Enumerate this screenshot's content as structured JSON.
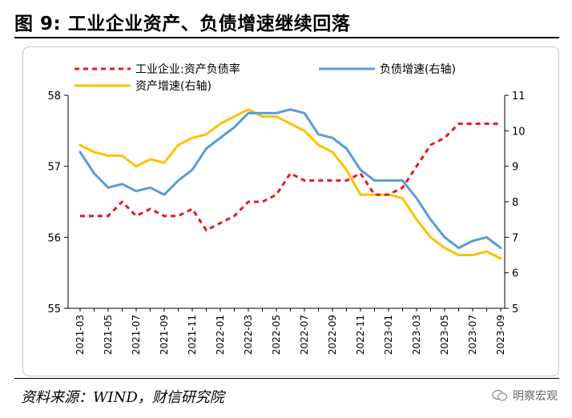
{
  "figure": {
    "title": "图 9:  工业企业资产、负债增速继续回落",
    "source": "资料来源：WIND，财信研究院",
    "watermark": "明察宏观"
  },
  "colors": {
    "series_ratio": "#e8191c",
    "series_liability": "#5b9bd5",
    "series_asset": "#ffc000"
  },
  "chart_data": {
    "type": "line",
    "title": "",
    "xlabel": "",
    "ylabel_left": "",
    "ylabel_right": "",
    "ylim_left": [
      55,
      58
    ],
    "ylim_right": [
      5,
      11
    ],
    "yticks_left": [
      "55",
      "56",
      "57",
      "58"
    ],
    "yticks_right": [
      "5",
      "6",
      "7",
      "8",
      "9",
      "10",
      "11"
    ],
    "xticks": [
      "2021-03",
      "2021-05",
      "2021-07",
      "2021-09",
      "2021-11",
      "2022-01",
      "2022-03",
      "2022-05",
      "2022-07",
      "2022-09",
      "2022-11",
      "2023-01",
      "2023-03",
      "2023-05",
      "2023-07",
      "2023-09"
    ],
    "grid": false,
    "legend_position": "top",
    "x": [
      "2021-03",
      "2021-04",
      "2021-05",
      "2021-06",
      "2021-07",
      "2021-08",
      "2021-09",
      "2021-10",
      "2021-11",
      "2021-12",
      "2022-01",
      "2022-02",
      "2022-03",
      "2022-04",
      "2022-05",
      "2022-06",
      "2022-07",
      "2022-08",
      "2022-09",
      "2022-10",
      "2022-11",
      "2022-12",
      "2023-01",
      "2023-02",
      "2023-03",
      "2023-04",
      "2023-05",
      "2023-06",
      "2023-07",
      "2023-08",
      "2023-09"
    ],
    "series": [
      {
        "name": "工业企业:资产负债率",
        "axis": "left",
        "style": "dashed",
        "values": [
          56.3,
          56.3,
          56.3,
          56.5,
          56.3,
          56.4,
          56.3,
          56.3,
          56.4,
          56.1,
          56.2,
          56.3,
          56.5,
          56.5,
          56.6,
          56.9,
          56.8,
          56.8,
          56.8,
          56.8,
          56.9,
          56.6,
          56.6,
          56.7,
          57.0,
          57.3,
          57.4,
          57.6,
          57.6,
          57.6,
          57.6
        ]
      },
      {
        "name": "负债增速(右轴)",
        "axis": "right",
        "style": "solid",
        "values": [
          9.4,
          8.8,
          8.4,
          8.5,
          8.3,
          8.4,
          8.2,
          8.6,
          8.9,
          9.5,
          9.8,
          10.1,
          10.5,
          10.5,
          10.5,
          10.6,
          10.5,
          9.9,
          9.8,
          9.5,
          8.9,
          8.6,
          8.6,
          8.6,
          8.1,
          7.5,
          7.0,
          6.7,
          6.9,
          7.0,
          6.7
        ]
      },
      {
        "name": "资产增速(右轴)",
        "axis": "right",
        "style": "solid",
        "values": [
          9.6,
          9.4,
          9.3,
          9.3,
          9.0,
          9.2,
          9.1,
          9.6,
          9.8,
          9.9,
          10.2,
          10.4,
          10.6,
          10.4,
          10.4,
          10.2,
          10.0,
          9.6,
          9.4,
          8.9,
          8.2,
          8.2,
          8.2,
          8.1,
          7.5,
          7.0,
          6.7,
          6.5,
          6.5,
          6.6,
          6.4
        ]
      }
    ]
  }
}
